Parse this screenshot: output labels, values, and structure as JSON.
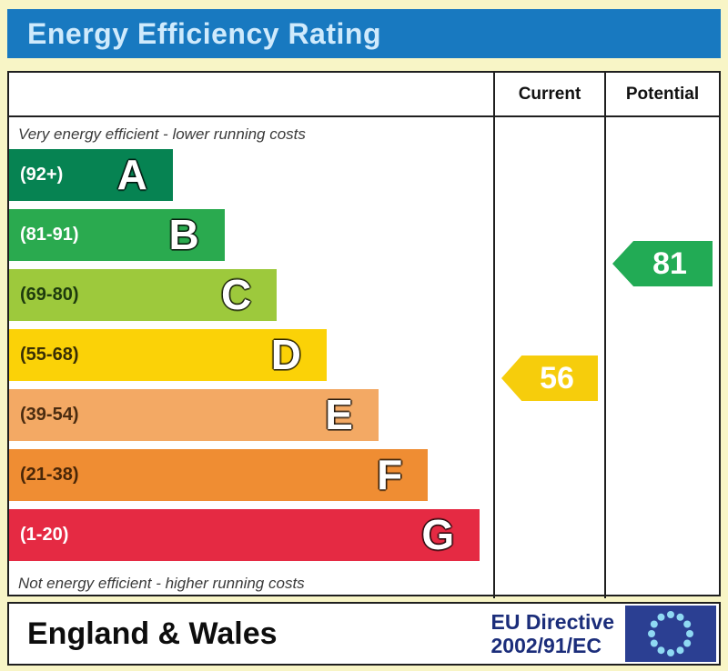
{
  "title": "Energy Efficiency Rating",
  "columns": {
    "current": "Current",
    "potential": "Potential"
  },
  "captions": {
    "top": "Very energy efficient - lower running costs",
    "bottom": "Not energy efficient - higher running costs"
  },
  "bands": [
    {
      "letter": "A",
      "range": "(92+)",
      "color": "#068352",
      "range_color": "#ffffff",
      "width_pct": 33.8
    },
    {
      "letter": "B",
      "range": "(81-91)",
      "color": "#2aaa4f",
      "range_color": "#ffffff",
      "width_pct": 44.5
    },
    {
      "letter": "C",
      "range": "(69-80)",
      "color": "#9dc93c",
      "range_color": "#1d3b0e",
      "width_pct": 55.3
    },
    {
      "letter": "D",
      "range": "(55-68)",
      "color": "#fbd207",
      "range_color": "#3a2f05",
      "width_pct": 65.6
    },
    {
      "letter": "E",
      "range": "(39-54)",
      "color": "#f3a964",
      "range_color": "#4a2c10",
      "width_pct": 76.3
    },
    {
      "letter": "F",
      "range": "(21-38)",
      "color": "#ef8d33",
      "range_color": "#4a2708",
      "width_pct": 86.5
    },
    {
      "letter": "G",
      "range": "(1-20)",
      "color": "#e52a43",
      "range_color": "#ffffff",
      "width_pct": 97.2
    }
  ],
  "ratings": {
    "current": {
      "value": "56",
      "color": "#f6cd0c",
      "band": "D"
    },
    "potential": {
      "value": "81",
      "color": "#22ab55",
      "band": "B"
    }
  },
  "footer": {
    "region": "England & Wales",
    "directive_line1": "EU Directive",
    "directive_line2": "2002/91/EC",
    "flag_icon": "eu-flag",
    "flag_bg": "#2b3f92",
    "flag_star_color": "#8fd9f3"
  },
  "chart_data": {
    "type": "bar",
    "title": "Energy Efficiency Rating",
    "categories": [
      "A (92+)",
      "B (81-91)",
      "C (69-80)",
      "D (55-68)",
      "E (39-54)",
      "F (21-38)",
      "G (1-20)"
    ],
    "values": [
      33.8,
      44.5,
      55.3,
      65.6,
      76.3,
      86.5,
      97.2
    ],
    "value_unit": "relative bar width %",
    "current_rating": 56,
    "current_band": "D",
    "potential_rating": 81,
    "potential_band": "B",
    "legend_position": "none",
    "xlabel": "",
    "ylabel": ""
  }
}
